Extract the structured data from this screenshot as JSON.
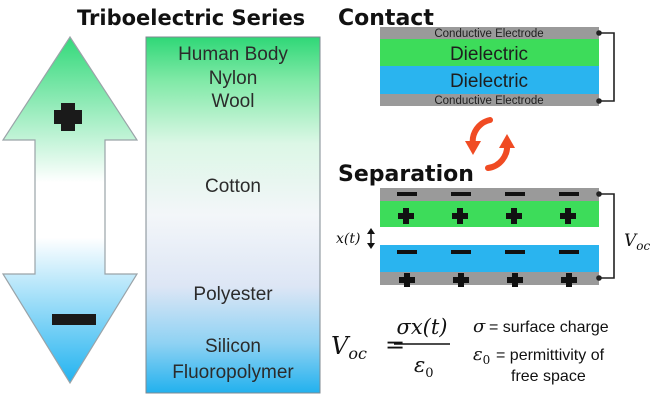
{
  "titles": {
    "series": "Triboelectric Series",
    "contact": "Contact",
    "separation": "Separation"
  },
  "series_materials": [
    "Human Body",
    "Nylon",
    "Wool",
    "Cotton",
    "Polyester",
    "Silicon",
    "Fluoropolymer"
  ],
  "arrow": {
    "top_sign": "+",
    "bottom_sign": "−"
  },
  "contact": {
    "electrode_top": "Conductive Electrode",
    "dielectric_top": "Dielectric",
    "dielectric_bottom": "Dielectric",
    "electrode_bottom": "Conductive Electrode"
  },
  "separation": {
    "gap_label": "x(t)",
    "voltage_label": "V",
    "voltage_subscript": "oc"
  },
  "formula": {
    "lhs": "V",
    "lhs_subscript": "oc",
    "equals": "=",
    "numerator": "σx(t)",
    "denominator": "ε",
    "denominator_subscript": "0"
  },
  "legend": {
    "sigma_symbol": "σ",
    "sigma_text": "= surface charge",
    "eps_symbol": "ε",
    "eps_subscript": "0",
    "eps_text_line1": "= permittivity of",
    "eps_text_line2": "free space"
  },
  "colors": {
    "green": "#3ddc5a",
    "blue": "#2ab4ef",
    "electrode": "#9a9a9a",
    "refresh": "#f04b23"
  }
}
